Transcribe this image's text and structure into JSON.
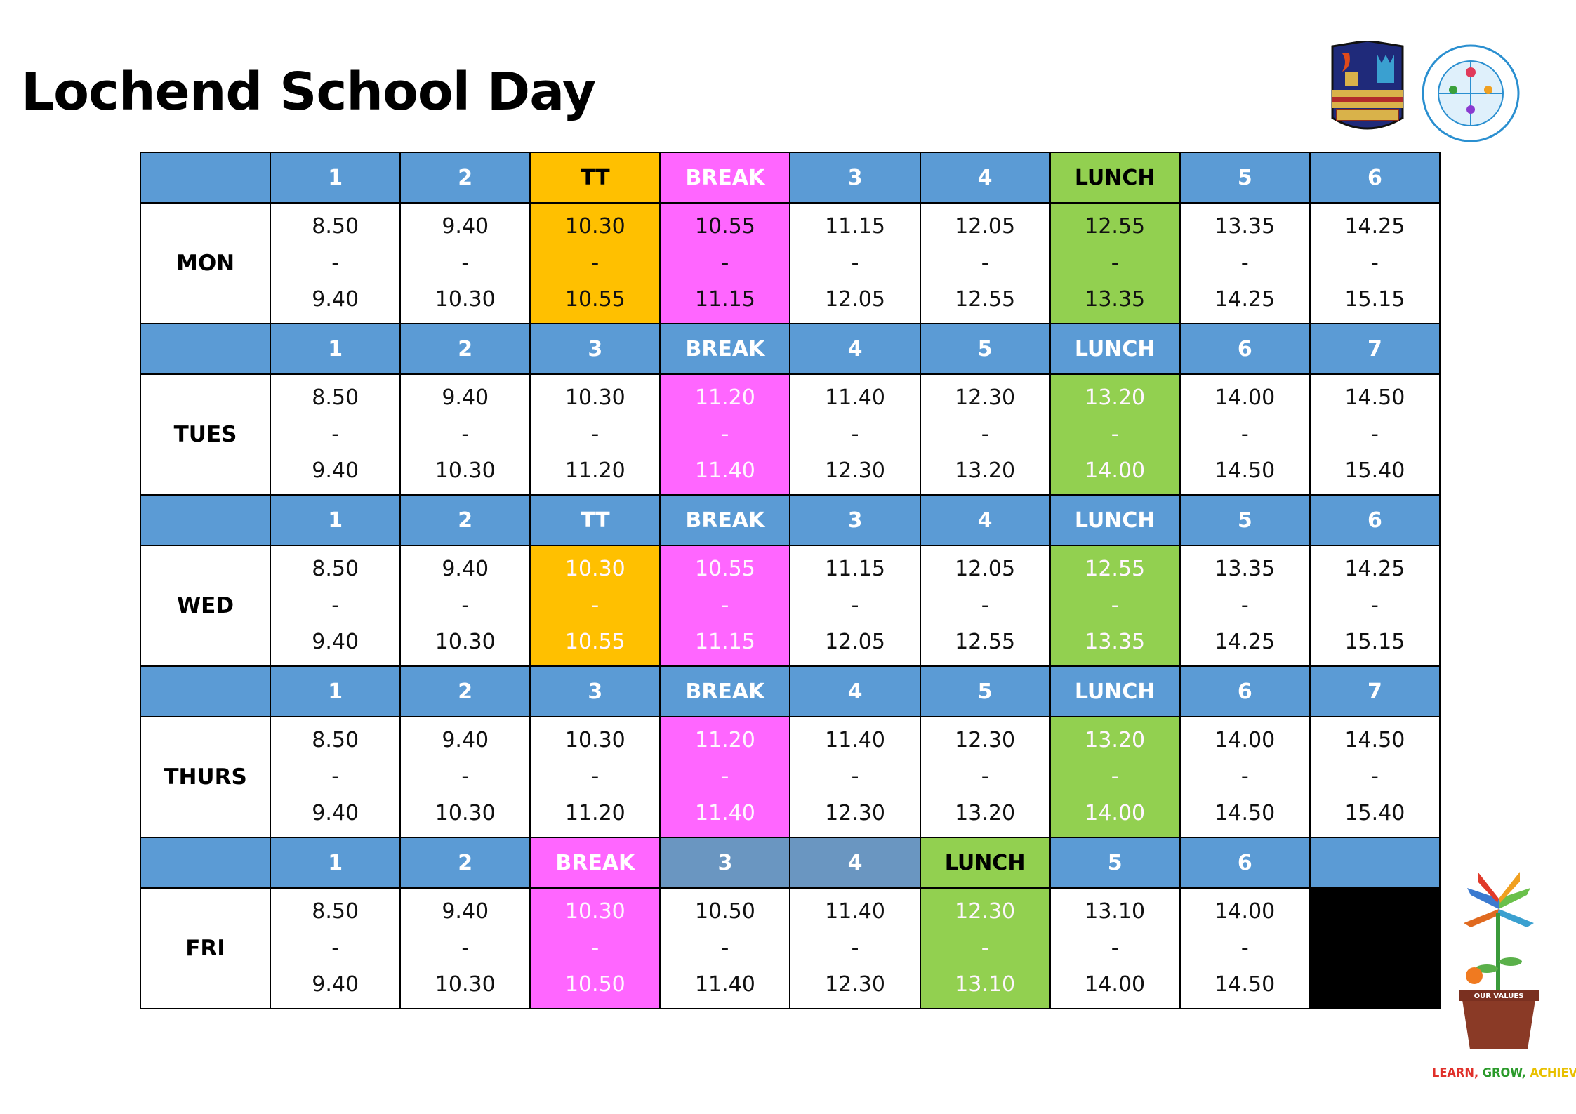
{
  "title": "Lochend School Day",
  "values_tagline": {
    "learn": "LEARN,",
    "grow": "GROW,",
    "achieve": "ACHIEVE"
  },
  "values_pot_label": "OUR VALUES",
  "colors": {
    "header_blue": "#5b9bd5",
    "tt_orange": "#ffc000",
    "break_pink": "#ff66ff",
    "lunch_green": "#92d050"
  },
  "days": [
    {
      "day": "MON",
      "headers": [
        "1",
        "2",
        "TT",
        "BREAK",
        "3",
        "4",
        "LUNCH",
        "5",
        "6"
      ],
      "header_colors": [
        "blue",
        "blue",
        "orange",
        "pink",
        "blue",
        "blue",
        "green",
        "blue",
        "blue"
      ],
      "times": [
        [
          "8.50",
          "-",
          "9.40"
        ],
        [
          "9.40",
          "-",
          "10.30"
        ],
        [
          "10.30",
          "-",
          "10.55"
        ],
        [
          "10.55",
          "-",
          "11.15"
        ],
        [
          "11.15",
          "-",
          "12.05"
        ],
        [
          "12.05",
          "-",
          "12.55"
        ],
        [
          "12.55",
          "-",
          "13.35"
        ],
        [
          "13.35",
          "-",
          "14.25"
        ],
        [
          "14.25",
          "-",
          "15.15"
        ]
      ]
    },
    {
      "day": "TUES",
      "headers": [
        "1",
        "2",
        "3",
        "BREAK",
        "4",
        "5",
        "LUNCH",
        "6",
        "7"
      ],
      "header_colors": [
        "blue",
        "blue",
        "blue",
        "blue",
        "blue",
        "blue",
        "blue",
        "blue",
        "blue"
      ],
      "times": [
        [
          "8.50",
          "-",
          "9.40"
        ],
        [
          "9.40",
          "-",
          "10.30"
        ],
        [
          "10.30",
          "-",
          "11.20"
        ],
        [
          "11.20",
          "-",
          "11.40"
        ],
        [
          "11.40",
          "-",
          "12.30"
        ],
        [
          "12.30",
          "-",
          "13.20"
        ],
        [
          "13.20",
          "-",
          "14.00"
        ],
        [
          "14.00",
          "-",
          "14.50"
        ],
        [
          "14.50",
          "-",
          "15.40"
        ]
      ]
    },
    {
      "day": "WED",
      "headers": [
        "1",
        "2",
        "TT",
        "BREAK",
        "3",
        "4",
        "LUNCH",
        "5",
        "6"
      ],
      "header_colors": [
        "blue",
        "blue",
        "blue",
        "blue",
        "blue",
        "blue",
        "blue",
        "blue",
        "blue"
      ],
      "times": [
        [
          "8.50",
          "-",
          "9.40"
        ],
        [
          "9.40",
          "-",
          "10.30"
        ],
        [
          "10.30",
          "-",
          "10.55"
        ],
        [
          "10.55",
          "-",
          "11.15"
        ],
        [
          "11.15",
          "-",
          "12.05"
        ],
        [
          "12.05",
          "-",
          "12.55"
        ],
        [
          "12.55",
          "-",
          "13.35"
        ],
        [
          "13.35",
          "-",
          "14.25"
        ],
        [
          "14.25",
          "-",
          "15.15"
        ]
      ]
    },
    {
      "day": "THURS",
      "headers": [
        "1",
        "2",
        "3",
        "BREAK",
        "4",
        "5",
        "LUNCH",
        "6",
        "7"
      ],
      "header_colors": [
        "blue",
        "blue",
        "blue",
        "blue",
        "blue",
        "blue",
        "blue",
        "blue",
        "blue"
      ],
      "times": [
        [
          "8.50",
          "-",
          "9.40"
        ],
        [
          "9.40",
          "-",
          "10.30"
        ],
        [
          "10.30",
          "-",
          "11.20"
        ],
        [
          "11.20",
          "-",
          "11.40"
        ],
        [
          "11.40",
          "-",
          "12.30"
        ],
        [
          "12.30",
          "-",
          "13.20"
        ],
        [
          "13.20",
          "-",
          "14.00"
        ],
        [
          "14.00",
          "-",
          "14.50"
        ],
        [
          "14.50",
          "-",
          "15.40"
        ]
      ]
    },
    {
      "day": "FRI",
      "headers": [
        "1",
        "2",
        "BREAK",
        "3",
        "4",
        "LUNCH",
        "5",
        "6",
        ""
      ],
      "header_colors": [
        "blue",
        "blue",
        "pink",
        "steel",
        "steel",
        "green",
        "blue",
        "blue",
        "blue"
      ],
      "times": [
        [
          "8.50",
          "-",
          "9.40"
        ],
        [
          "9.40",
          "-",
          "10.30"
        ],
        [
          "10.30",
          "-",
          "10.50"
        ],
        [
          "10.50",
          "-",
          "11.40"
        ],
        [
          "11.40",
          "-",
          "12.30"
        ],
        [
          "12.30",
          "-",
          "13.10"
        ],
        [
          "13.10",
          "-",
          "14.00"
        ],
        [
          "14.00",
          "-",
          "14.50"
        ],
        [
          "",
          "",
          ""
        ]
      ]
    }
  ]
}
